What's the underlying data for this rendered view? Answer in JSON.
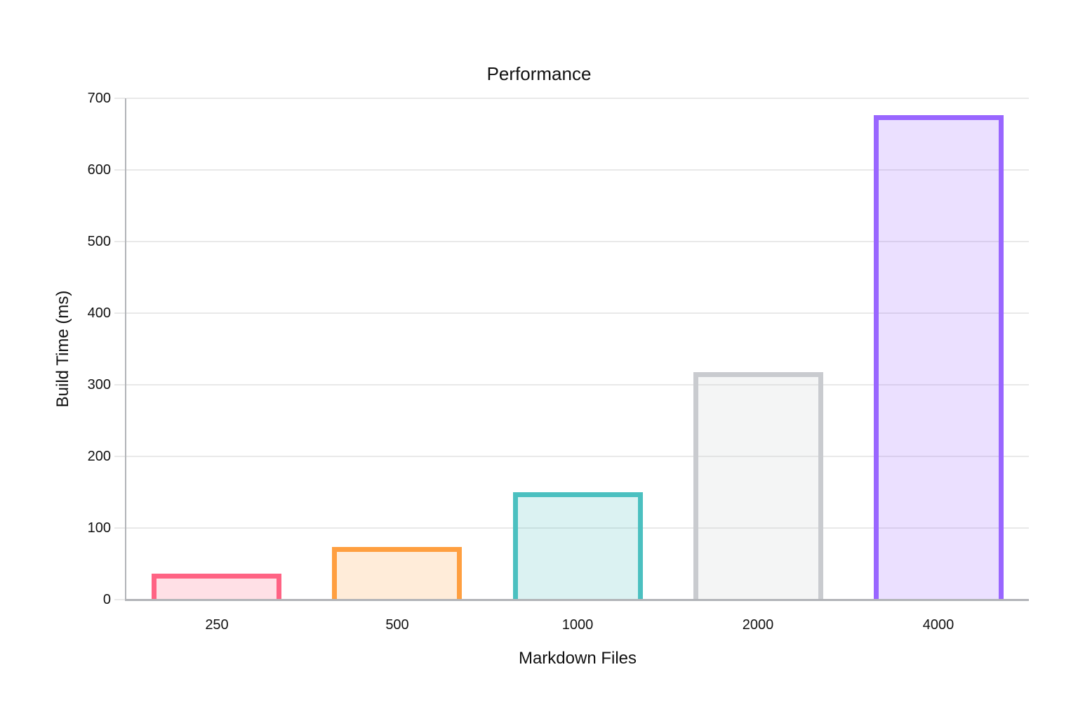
{
  "chart_data": {
    "type": "bar",
    "title": "Performance",
    "xlabel": "Markdown Files",
    "ylabel": "Build Time (ms)",
    "categories": [
      "250",
      "500",
      "1000",
      "2000",
      "4000"
    ],
    "values": [
      36,
      74,
      150,
      318,
      676
    ],
    "ylim": [
      0,
      700
    ],
    "ytick_step": 100,
    "ytick_labels": [
      "0",
      "100",
      "200",
      "300",
      "400",
      "500",
      "600",
      "700"
    ],
    "grid": "horizontal gridlines only",
    "legend_position": "none",
    "bar_colors": [
      {
        "name": "pink",
        "border": "#FF6384",
        "fill": "rgba(255,99,132,0.2)"
      },
      {
        "name": "orange",
        "border": "#FF9F40",
        "fill": "rgba(255,159,64,0.2)"
      },
      {
        "name": "teal",
        "border": "#4BC0C0",
        "fill": "rgba(75,192,192,0.2)"
      },
      {
        "name": "gray",
        "border": "#C9CBCF",
        "fill": "rgba(201,203,207,0.2)"
      },
      {
        "name": "purple",
        "border": "#9966FF",
        "fill": "rgba(153,102,255,0.2)"
      }
    ],
    "gridline_color": "#e9e9e9",
    "axis_line_color": "#b2b4b8",
    "text_color": "#111111",
    "background_color": "#ffffff"
  }
}
